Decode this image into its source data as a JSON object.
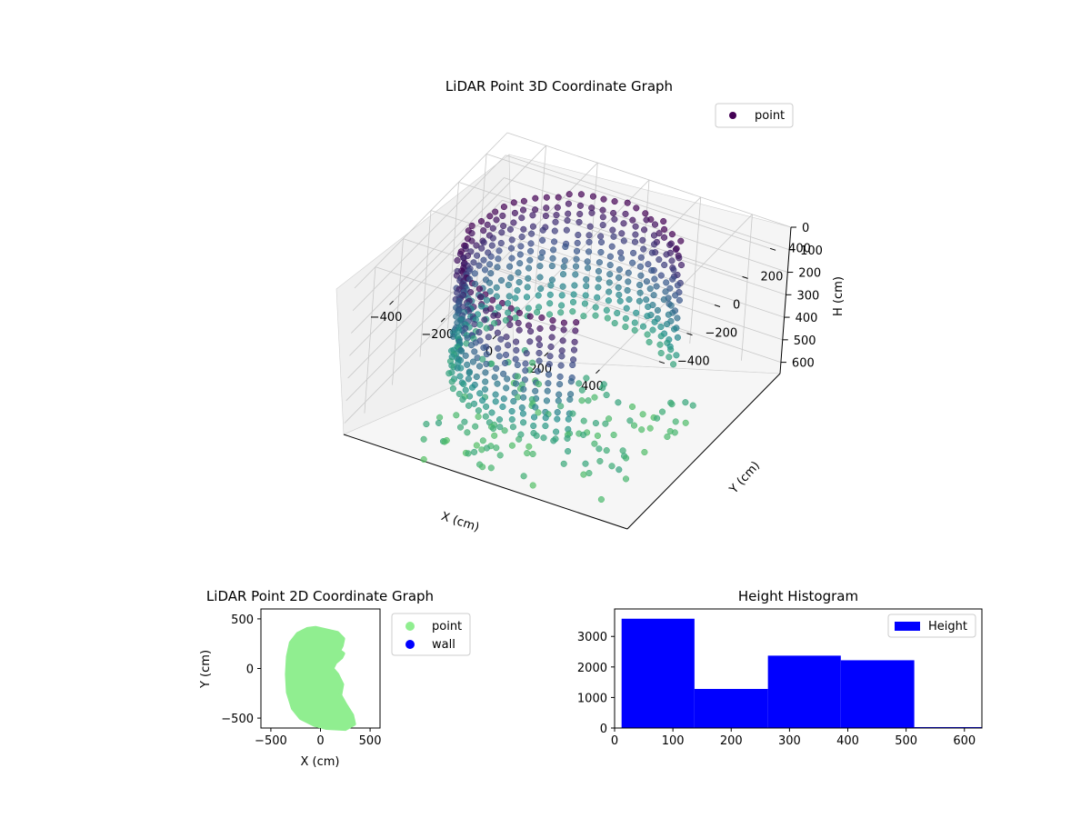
{
  "figure": {
    "background": "#ffffff"
  },
  "chart_data": [
    {
      "type": "scatter",
      "projection": "3d",
      "title": "LiDAR Point 3D Coordinate Graph",
      "xlabel": "X (cm)",
      "ylabel": "Y (cm)",
      "zlabel": "H (cm)",
      "xlim": [
        -550,
        550
      ],
      "ylim": [
        -550,
        550
      ],
      "zlim": [
        0,
        650
      ],
      "z_inverted": true,
      "xticks": [
        "−400",
        "−200",
        "0",
        "200",
        "400"
      ],
      "yticks": [
        "−400",
        "−200",
        "0",
        "200",
        "400"
      ],
      "zticks": [
        "0",
        "100",
        "200",
        "300",
        "400",
        "500",
        "600"
      ],
      "colormap": "viridis",
      "grid": true,
      "legend": {
        "position": "upper-right",
        "entries": [
          {
            "label": "point",
            "color": "#440154"
          }
        ]
      },
      "series": [
        {
          "name": "point",
          "note_shape": "wall ring radius ~380 cm with opening toward +X, heights 0–520 cm; sparse scattered floor points extending toward -Y / +X",
          "ring": {
            "radius": 380,
            "h_min": 0,
            "h_max": 520,
            "opening_deg": [
              -60,
              40
            ]
          },
          "floor_scatter": {
            "count": 120,
            "h_range": [
              520,
              650
            ],
            "x_range": [
              -300,
              450
            ],
            "y_range": [
              -550,
              100
            ]
          }
        }
      ]
    },
    {
      "type": "scatter",
      "title": "LiDAR Point 2D Coordinate Graph",
      "xlabel": "X (cm)",
      "ylabel": "Y (cm)",
      "xlim": [
        -600,
        600
      ],
      "ylim": [
        -600,
        600
      ],
      "xticks": [
        "−500",
        "0",
        "500"
      ],
      "yticks": [
        "−500",
        "0",
        "500"
      ],
      "grid": false,
      "legend": {
        "position": "outside-right",
        "entries": [
          {
            "label": "point",
            "color": "#90ee90"
          },
          {
            "label": "wall",
            "color": "#0000ff"
          }
        ]
      },
      "series": [
        {
          "name": "point",
          "color": "#90ee90",
          "outline": [
            [
              -50,
              410
            ],
            [
              80,
              380
            ],
            [
              170,
              360
            ],
            [
              230,
              300
            ],
            [
              215,
              230
            ],
            [
              190,
              180
            ],
            [
              230,
              150
            ],
            [
              210,
              110
            ],
            [
              150,
              60
            ],
            [
              120,
              0
            ],
            [
              170,
              -60
            ],
            [
              220,
              -160
            ],
            [
              200,
              -270
            ],
            [
              250,
              -360
            ],
            [
              320,
              -470
            ],
            [
              340,
              -560
            ],
            [
              250,
              -610
            ],
            [
              60,
              -600
            ],
            [
              -60,
              -570
            ],
            [
              -200,
              -500
            ],
            [
              -280,
              -400
            ],
            [
              -330,
              -240
            ],
            [
              -340,
              -60
            ],
            [
              -330,
              120
            ],
            [
              -300,
              260
            ],
            [
              -230,
              350
            ],
            [
              -130,
              400
            ]
          ]
        },
        {
          "name": "wall",
          "color": "#0000ff",
          "points": []
        }
      ]
    },
    {
      "type": "bar",
      "histogram": true,
      "title": "Height Histogram",
      "xlabel": "",
      "ylabel": "",
      "xlim": [
        0,
        630
      ],
      "ylim": [
        0,
        3900
      ],
      "xticks": [
        "0",
        "100",
        "200",
        "300",
        "400",
        "500",
        "600"
      ],
      "yticks": [
        "0",
        "1000",
        "2000",
        "3000"
      ],
      "legend": {
        "position": "upper-right",
        "entries": [
          {
            "label": "Height",
            "color": "#0000ff"
          }
        ]
      },
      "bins": [
        {
          "x0": 12,
          "x1": 137,
          "value": 3580
        },
        {
          "x0": 137,
          "x1": 263,
          "value": 1280
        },
        {
          "x0": 263,
          "x1": 388,
          "value": 2370
        },
        {
          "x0": 388,
          "x1": 514,
          "value": 2220
        },
        {
          "x0": 514,
          "x1": 640,
          "value": 30
        }
      ],
      "color": "#0000ff"
    }
  ]
}
